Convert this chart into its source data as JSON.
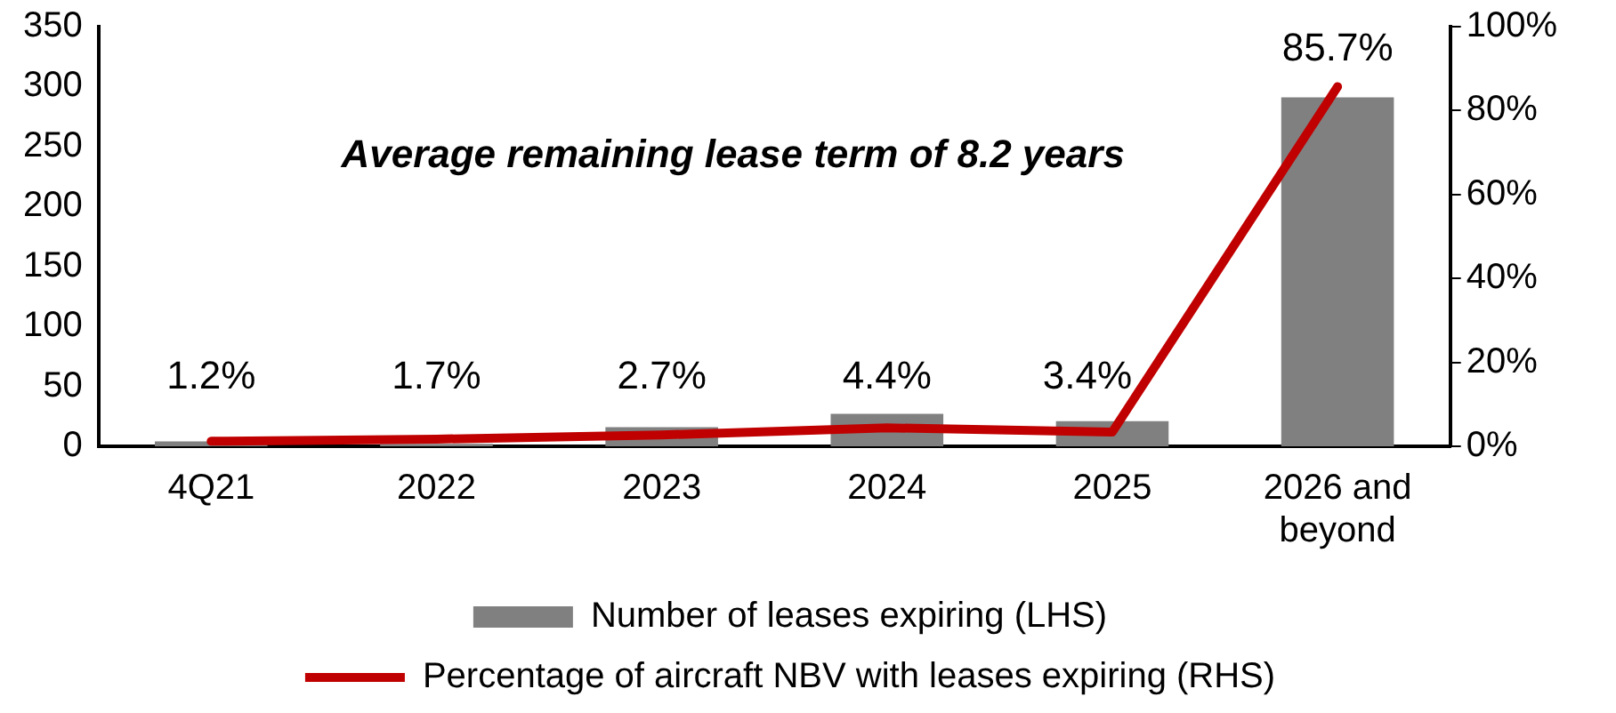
{
  "chart_data": {
    "type": "bar",
    "categories": [
      "4Q21",
      "2022",
      "2023",
      "2024",
      "2025",
      "2026 and beyond"
    ],
    "series": [
      {
        "name": "Number of leases expiring (LHS)",
        "color": "#808080",
        "values": [
          4,
          2,
          16,
          27,
          21,
          291
        ]
      },
      {
        "name": "Percentage of aircraft NBV with leases expiring (RHS)",
        "type": "line",
        "axis": "y2",
        "color": "#c00000",
        "values": [
          1.2,
          1.7,
          2.7,
          4.4,
          3.4,
          85.7
        ],
        "value_labels": [
          "1.2%",
          "1.7%",
          "2.7%",
          "4.4%",
          "3.4%",
          "85.7%"
        ],
        "marker": "none"
      }
    ],
    "ylim": [
      0,
      350
    ],
    "yticks": [
      0,
      50,
      100,
      150,
      200,
      250,
      300,
      350
    ],
    "y2lim": [
      0,
      100
    ],
    "y2ticks": [
      {
        "value": 0,
        "label": "0%"
      },
      {
        "value": 20,
        "label": "20%"
      },
      {
        "value": 40,
        "label": "40%"
      },
      {
        "value": 60,
        "label": "60%"
      },
      {
        "value": 80,
        "label": "80%"
      },
      {
        "value": 100,
        "label": "100%"
      }
    ],
    "annotations": [
      "Average remaining lease term of 8.2 years"
    ],
    "grid": false,
    "legend": "bottom"
  }
}
